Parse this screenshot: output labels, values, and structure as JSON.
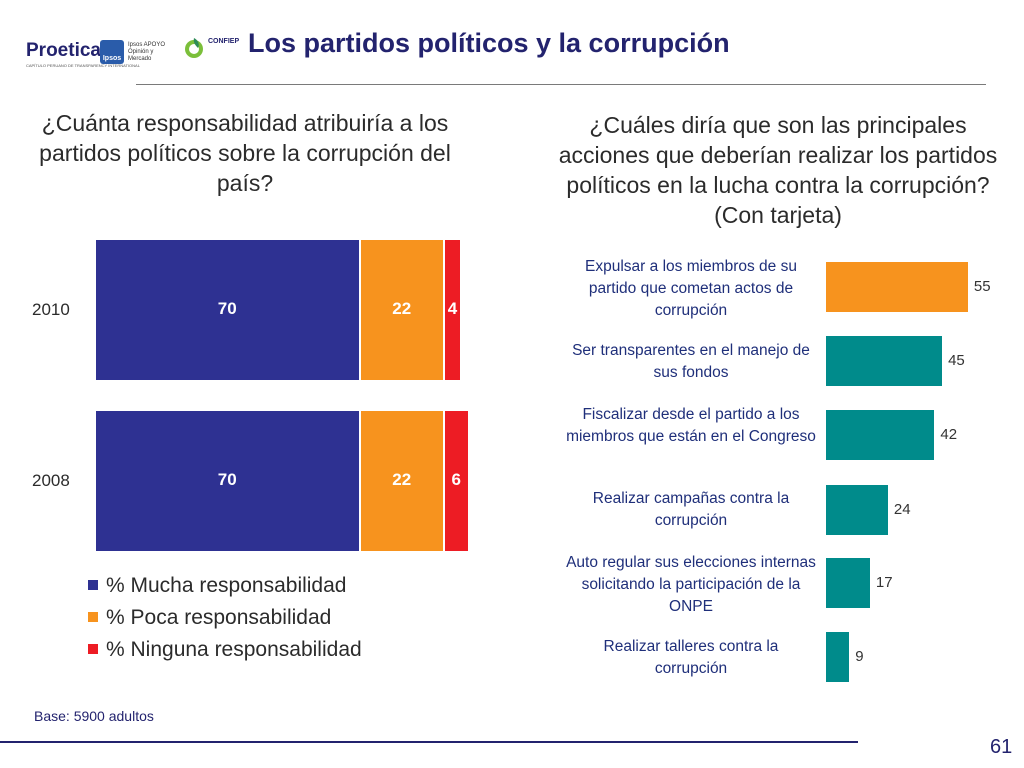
{
  "header": {
    "title": "Los partidos políticos y la corrupción",
    "logos": {
      "proetica": "Proetica",
      "proetica_sub": "CAPÍTULO PERUANO DE TRANSPARENCY INTERNATIONAL",
      "ipsos": "Ipsos",
      "apoyo": "Ipsos APOYO Opinión y Mercado",
      "confiep": "CONFIEP"
    }
  },
  "colors": {
    "navy": "#2e3192",
    "orange": "#f7931e",
    "red": "#ed1c24",
    "teal": "#008b8b",
    "title": "#23236e"
  },
  "left": {
    "question": "¿Cuánta responsabilidad atribuiría a los partidos políticos sobre la corrupción del país?"
  },
  "right": {
    "question": "¿Cuáles diría que son las principales acciones que deberían realizar los partidos políticos en la lucha contra la corrupción? (Con tarjeta)"
  },
  "chart_data": [
    {
      "type": "bar",
      "orientation": "horizontal-stacked",
      "categories": [
        "2010",
        "2008"
      ],
      "series": [
        {
          "name": "% Mucha responsabilidad",
          "values": [
            70,
            70
          ],
          "color": "#2e3192"
        },
        {
          "name": "% Poca responsabilidad",
          "values": [
            22,
            22
          ],
          "color": "#f7931e"
        },
        {
          "name": "% Ninguna responsabilidad",
          "values": [
            4,
            6
          ],
          "color": "#ed1c24"
        }
      ],
      "legend": "bottom"
    },
    {
      "type": "bar",
      "orientation": "horizontal",
      "categories": [
        "Expulsar a los miembros de su partido que cometan actos de corrupción",
        "Ser transparentes en el manejo de sus fondos",
        "Fiscalizar desde el partido a los miembros que están en el Congreso",
        "Realizar campañas contra la corrupción",
        "Auto regular sus elecciones internas solicitando la participación de la ONPE",
        "Realizar talleres contra la corrupción"
      ],
      "values": [
        55,
        45,
        42,
        24,
        17,
        9
      ],
      "colors": [
        "#f7931e",
        "#008b8b",
        "#008b8b",
        "#008b8b",
        "#008b8b",
        "#008b8b"
      ]
    }
  ],
  "footer": {
    "base": "Base: 5900 adultos",
    "page": "61"
  }
}
